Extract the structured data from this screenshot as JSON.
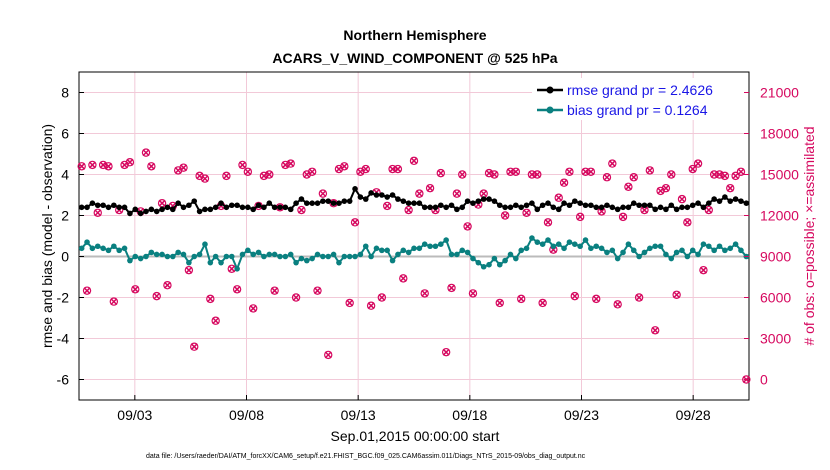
{
  "chart_data": {
    "type": "line",
    "title": "Northern Hemisphere",
    "subtitle": "ACARS_V_WIND_COMPONENT @ 525 hPa",
    "xlabel": "Sep.01,2015 00:00:00 start",
    "ylabel": "rmse and bias (model - observation)",
    "ylabel_right": "# of obs: o=possible; ×=assimilated",
    "footnote": "data file: /Users/raeder/DAI/ATM_forcXX/CAM6_setup/f.e21.FHIST_BGC.f09_025.CAM6assim.011/Diags_NTrS_2015-09/obs_diag_output.nc",
    "xlim": [
      0.5,
      30.5
    ],
    "ylim": [
      -7,
      9
    ],
    "ylim_right": [
      -1500,
      22500
    ],
    "x_ticks": [
      {
        "x": 3,
        "label": "09/03"
      },
      {
        "x": 8,
        "label": "09/08"
      },
      {
        "x": 13,
        "label": "09/13"
      },
      {
        "x": 18,
        "label": "09/18"
      },
      {
        "x": 23,
        "label": "09/23"
      },
      {
        "x": 28,
        "label": "09/28"
      }
    ],
    "y_ticks": [
      "-6",
      "-4",
      "-2",
      "0",
      "2",
      "4",
      "6",
      "8"
    ],
    "y_ticks_right": [
      "0",
      "3000",
      "6000",
      "9000",
      "12000",
      "15000",
      "18000",
      "21000"
    ],
    "grid": true,
    "legend_position": "top-right",
    "colors": {
      "rmse": "#000000",
      "bias": "#0a8080",
      "obs": "#d6085f",
      "zero_line": "#bbbbbb",
      "grid": "#f2c9d8"
    },
    "series": [
      {
        "name": "rmse grand pr = 2.4626",
        "values": [
          2.4,
          2.4,
          2.6,
          2.5,
          2.5,
          2.4,
          2.5,
          2.4,
          2.4,
          2.1,
          2.3,
          2.1,
          2.2,
          2.3,
          2.2,
          2.3,
          2.4,
          2.3,
          2.6,
          2.4,
          2.5,
          2.7,
          2.2,
          2.3,
          2.3,
          2.4,
          2.6,
          2.4,
          2.5,
          2.5,
          2.4,
          2.4,
          2.3,
          2.5,
          2.4,
          2.6,
          2.4,
          2.4,
          2.4,
          2.3,
          2.6,
          2.8,
          2.6,
          2.6,
          2.6,
          2.7,
          2.7,
          2.6,
          2.6,
          2.7,
          2.7,
          3.3,
          2.9,
          2.8,
          3.1,
          3.0,
          3.0,
          2.9,
          3.0,
          2.8,
          2.7,
          2.6,
          2.6,
          2.6,
          2.4,
          2.4,
          2.4,
          2.5,
          2.4,
          2.5,
          2.3,
          2.4,
          2.7,
          2.6,
          2.7,
          2.8,
          2.8,
          2.7,
          2.5,
          2.4,
          2.4,
          2.5,
          2.4,
          2.5,
          2.6,
          2.3,
          2.5,
          2.6,
          2.4,
          2.3,
          2.6,
          2.5,
          2.7,
          2.6,
          2.5,
          2.5,
          2.4,
          2.4,
          2.5,
          2.4,
          2.3,
          2.4,
          2.4,
          2.6,
          2.5,
          2.5,
          2.5,
          2.3,
          2.4,
          2.3,
          2.5,
          2.3,
          2.4,
          2.4,
          2.5,
          2.6,
          2.4,
          2.6,
          2.8,
          2.7,
          2.9,
          2.7,
          2.8,
          2.7,
          2.6
        ]
      },
      {
        "name": "bias grand pr = 0.1264",
        "values": [
          0.4,
          0.7,
          0.4,
          0.5,
          0.4,
          0.3,
          0.5,
          0.3,
          0.4,
          -0.2,
          0.0,
          -0.1,
          0.0,
          0.2,
          0.1,
          0.1,
          0.0,
          0.0,
          0.2,
          0.1,
          -0.3,
          0.0,
          0.1,
          0.6,
          -0.3,
          0.0,
          -0.3,
          0.0,
          0.0,
          -0.6,
          0.1,
          0.3,
          0.1,
          0.2,
          0.0,
          0.1,
          0.1,
          0.0,
          0.0,
          0.1,
          -0.3,
          -0.1,
          -0.2,
          -0.1,
          0.1,
          0.0,
          0.0,
          0.1,
          -0.3,
          0.0,
          0.0,
          0.0,
          0.1,
          0.5,
          0.0,
          0.4,
          0.3,
          0.3,
          -0.2,
          0.1,
          0.3,
          0.2,
          0.4,
          0.4,
          0.6,
          0.5,
          0.5,
          0.6,
          0.8,
          0.1,
          0.1,
          0.3,
          0.2,
          -0.1,
          -0.3,
          -0.5,
          -0.4,
          -0.1,
          -0.4,
          -0.2,
          0.1,
          -0.1,
          0.3,
          0.4,
          0.9,
          0.7,
          0.6,
          0.8,
          0.5,
          0.6,
          0.4,
          0.7,
          0.6,
          0.5,
          0.8,
          0.4,
          0.5,
          0.4,
          0.2,
          0.3,
          -0.1,
          0.2,
          0.6,
          0.3,
          0.0,
          0.2,
          0.4,
          0.5,
          0.5,
          0.1,
          -0.1,
          0.2,
          0.3,
          0.0,
          0.3,
          0.1,
          0.6,
          0.5,
          0.3,
          0.5,
          0.3,
          0.4,
          0.6,
          0.3,
          0.0
        ]
      },
      {
        "name": "",
        "values": [
          15600,
          6500,
          15700,
          12200,
          15700,
          15600,
          5700,
          12400,
          15700,
          15900,
          6600,
          12300,
          16600,
          15600,
          6100,
          12900,
          6900,
          12700,
          15300,
          15500,
          8000,
          2400,
          14900,
          14700,
          5900,
          4300,
          12700,
          14900,
          8100,
          6600,
          15700,
          15200,
          5200,
          12700,
          14900,
          15000,
          6500,
          12600,
          15700,
          15800,
          6000,
          12400,
          15000,
          15200,
          6500,
          13600,
          1800,
          12900,
          15400,
          15600,
          5600,
          11500,
          15200,
          15400,
          5400,
          13700,
          6000,
          12700,
          15400,
          15400,
          7400,
          12400,
          16000,
          13600,
          6300,
          14000,
          12400,
          15100,
          2000,
          6700,
          13600,
          15000,
          11200,
          6300,
          12800,
          13600,
          15100,
          15000,
          5600,
          12000,
          15200,
          15200,
          5900,
          12200,
          15000,
          15000,
          5600,
          11500,
          9500,
          13300,
          14400,
          15200,
          6100,
          11900,
          15200,
          15200,
          5900,
          12300,
          14800,
          15800,
          5500,
          11900,
          14100,
          14800,
          6000,
          12400,
          15300,
          3600,
          13800,
          14000,
          15000,
          6200,
          13200,
          11500,
          15400,
          15800,
          8000,
          12400,
          15000,
          15000,
          14900,
          14000,
          14900,
          15200,
          0
        ]
      }
    ]
  }
}
